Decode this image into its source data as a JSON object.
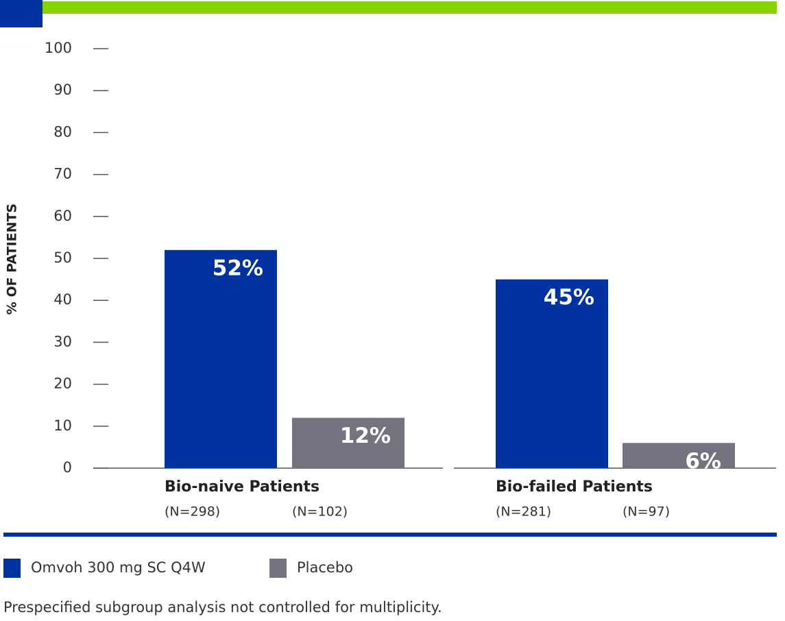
{
  "chart_data": {
    "type": "bar",
    "y_label": "% OF PATIENTS",
    "categories": [
      "Bio-naive Patients",
      "Bio-failed Patients"
    ],
    "series": [
      {
        "name": "Omvoh 300 mg SC Q4W",
        "color": "#0033a1",
        "values": [
          52,
          45
        ],
        "value_labels": [
          "52%",
          "45%"
        ],
        "n_labels": [
          "(N=298)",
          "(N=281)"
        ]
      },
      {
        "name": "Placebo",
        "color": "#737480",
        "values": [
          12,
          6
        ],
        "value_labels": [
          "12%",
          "6%"
        ],
        "n_labels": [
          "(N=102)",
          "(N=97)"
        ]
      }
    ],
    "ylim": [
      0,
      100
    ],
    "yticks": [
      0,
      10,
      20,
      30,
      40,
      50,
      60,
      70,
      80,
      90,
      100
    ],
    "footnote": "Prespecified subgroup analysis not controlled for multiplicity."
  }
}
